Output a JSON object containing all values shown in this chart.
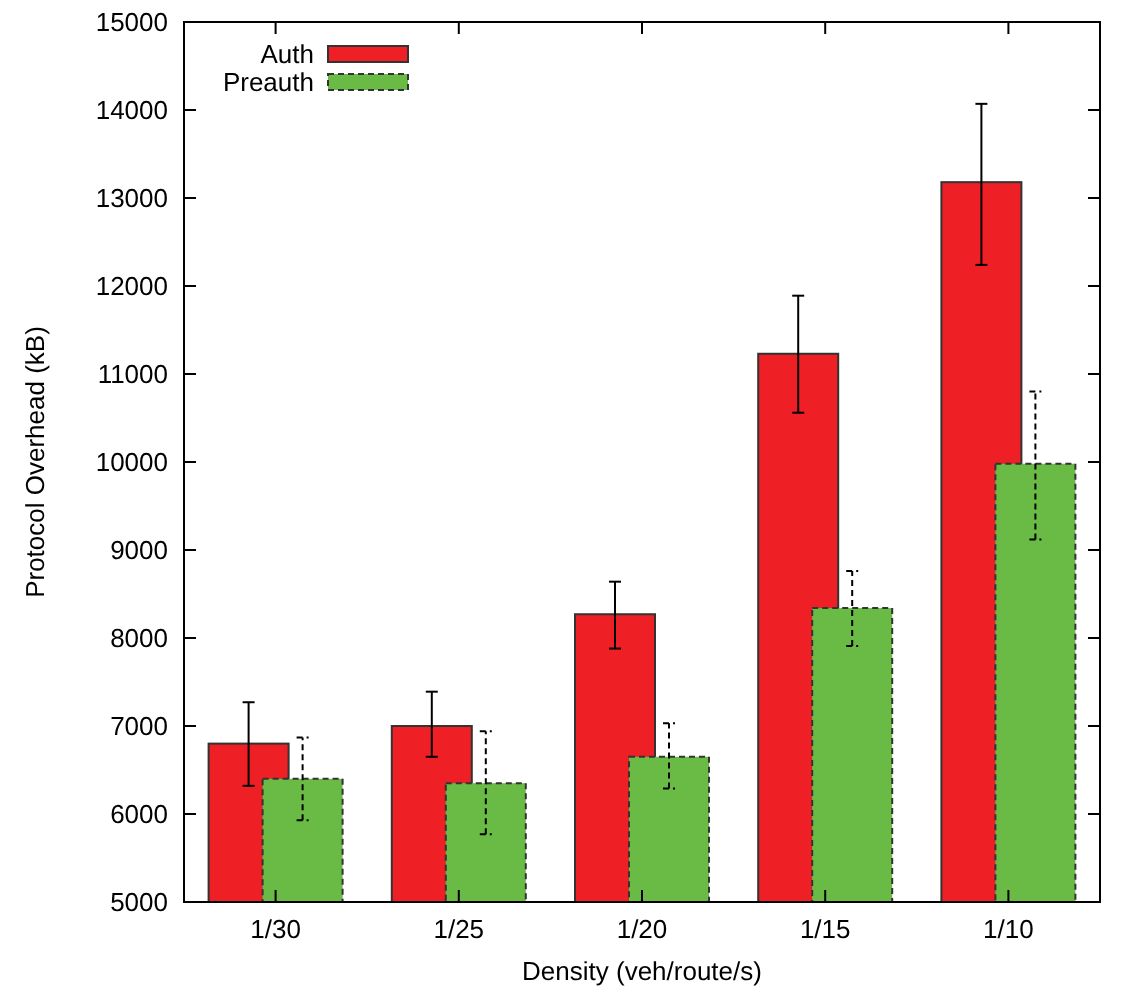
{
  "chart_data": {
    "type": "bar",
    "xlabel": "Density (veh/route/s)",
    "ylabel": "Protocol Overhead (kB)",
    "categories": [
      "1/30",
      "1/25",
      "1/20",
      "1/15",
      "1/10"
    ],
    "series": [
      {
        "name": "Auth",
        "color": "#ee1f25",
        "line_style": "solid",
        "values": [
          6800,
          7000,
          8270,
          11230,
          13180
        ],
        "errors": [
          [
            6320,
            7270
          ],
          [
            6650,
            7390
          ],
          [
            7880,
            8640
          ],
          [
            10560,
            11890
          ],
          [
            12240,
            14070
          ]
        ]
      },
      {
        "name": "Preauth",
        "color": "#69bb45",
        "line_style": "dashed",
        "values": [
          6400,
          6350,
          6650,
          8340,
          9980
        ],
        "errors": [
          [
            5930,
            6870
          ],
          [
            5770,
            6940
          ],
          [
            6290,
            7030
          ],
          [
            7910,
            8760
          ],
          [
            9120,
            10800
          ]
        ]
      }
    ],
    "ylim": [
      5000,
      15000
    ],
    "yticks": [
      5000,
      6000,
      7000,
      8000,
      9000,
      10000,
      11000,
      12000,
      13000,
      14000,
      15000
    ],
    "grid": false,
    "legend": "top left"
  }
}
